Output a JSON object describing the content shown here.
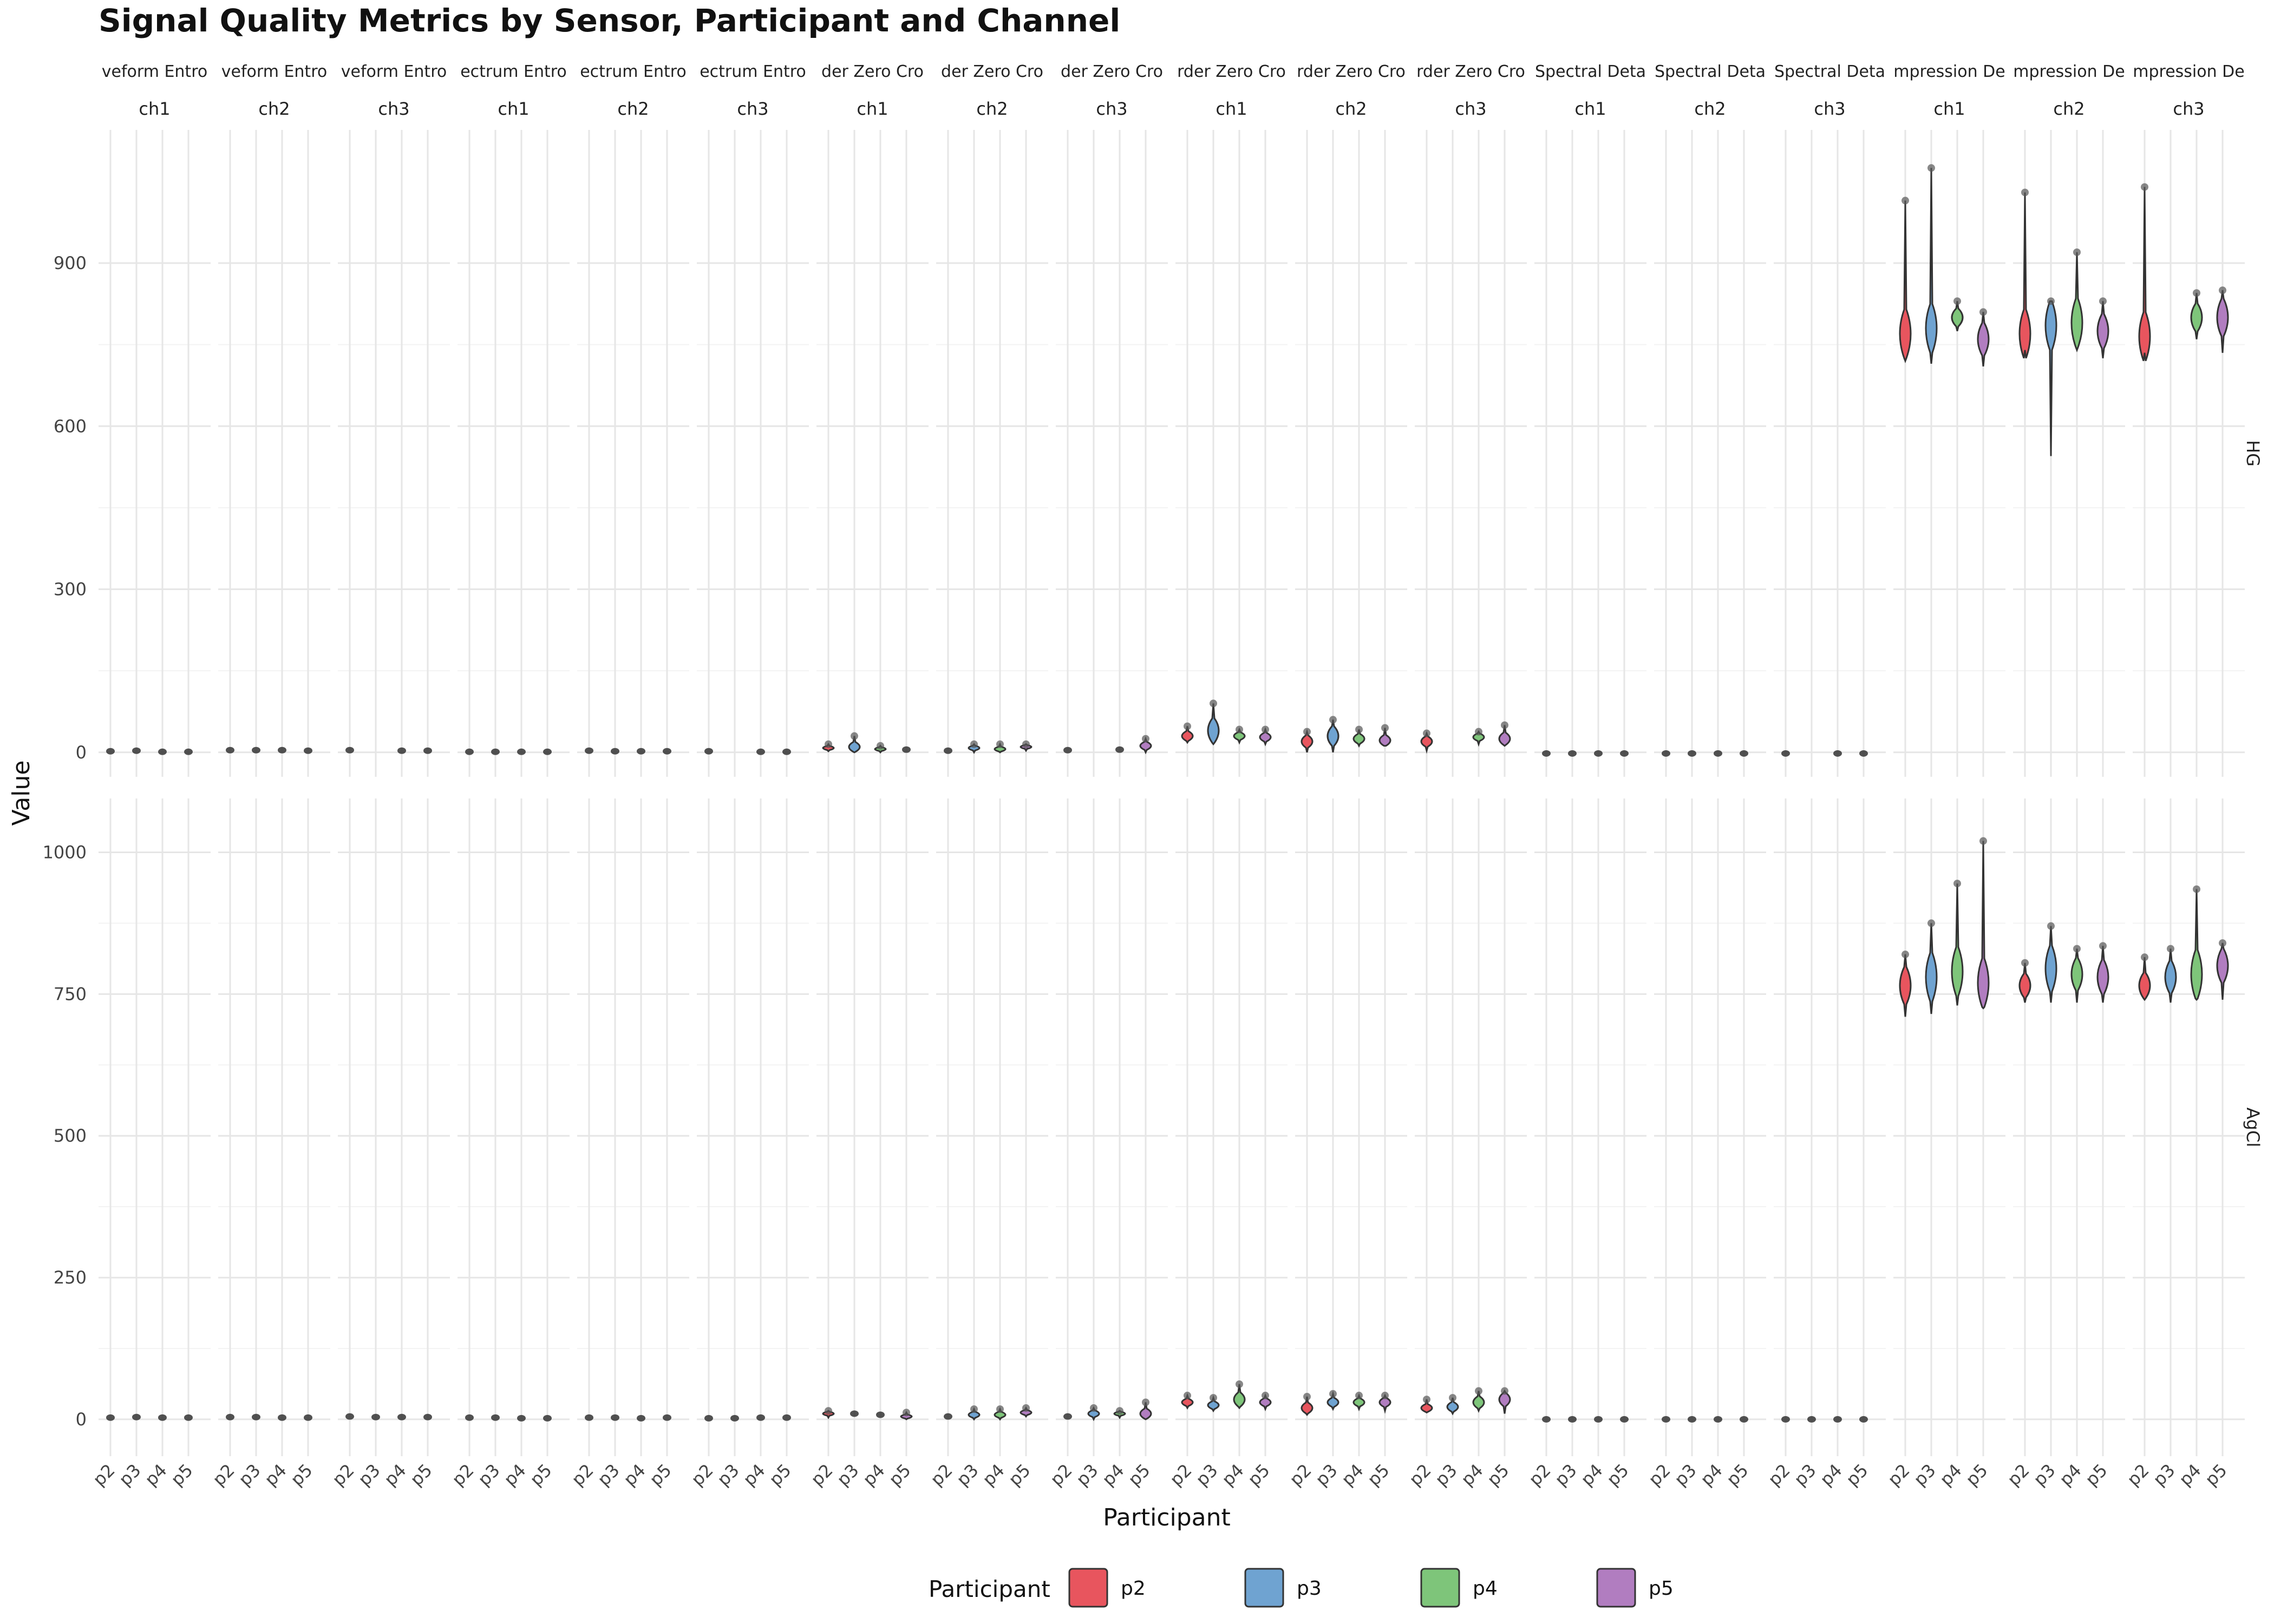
{
  "chart_data": {
    "type": "violin",
    "title": "Signal Quality Metrics by Sensor, Participant and Channel",
    "xlabel": "Participant",
    "ylabel": "Value",
    "categories": [
      "p2",
      "p3",
      "p4",
      "p5"
    ],
    "metric_strips": [
      "veform Entro",
      "veform Entro",
      "veform Entro",
      "ectrum Entro",
      "ectrum Entro",
      "ectrum Entro",
      "der Zero Cro",
      "der Zero Cro",
      "der Zero Cro",
      "rder Zero Cro",
      "rder Zero Cro",
      "rder Zero Cro",
      "Spectral Deta",
      "Spectral Deta",
      "Spectral Deta",
      "mpression De",
      "mpression De",
      "mpression De"
    ],
    "channel_strips": [
      "ch1",
      "ch2",
      "ch3",
      "ch1",
      "ch2",
      "ch3",
      "ch1",
      "ch2",
      "ch3",
      "ch1",
      "ch2",
      "ch3",
      "ch1",
      "ch2",
      "ch3",
      "ch1",
      "ch2",
      "ch3"
    ],
    "rows": [
      {
        "sensor": "HG",
        "ylim": [
          -45,
          1145
        ],
        "yticks": [
          0,
          300,
          600,
          900
        ],
        "panels": [
          [
            [
              2,
              1,
              6
            ],
            [
              3,
              1,
              6
            ],
            [
              1,
              0,
              3
            ],
            [
              1,
              0,
              3
            ]
          ],
          [
            [
              4,
              1,
              8
            ],
            [
              4,
              1,
              8
            ],
            [
              4,
              1,
              8
            ],
            [
              3,
              1,
              6
            ]
          ],
          [
            [
              4,
              1,
              8
            ],
            null,
            [
              3,
              1,
              5
            ],
            [
              3,
              1,
              5
            ]
          ],
          [
            [
              1,
              0,
              2
            ],
            [
              1,
              0,
              3
            ],
            [
              1,
              0,
              2
            ],
            [
              1,
              0,
              2
            ]
          ],
          [
            [
              3,
              0,
              5
            ],
            [
              2,
              0,
              4
            ],
            [
              2,
              0,
              4
            ],
            [
              2,
              0,
              4
            ]
          ],
          [
            [
              2,
              0,
              4
            ],
            null,
            [
              1,
              0,
              2
            ],
            [
              1,
              0,
              3
            ]
          ],
          [
            [
              8,
              2,
              15
            ],
            [
              10,
              0,
              30
            ],
            [
              6,
              0,
              12
            ],
            [
              5,
              1,
              10
            ]
          ],
          [
            [
              3,
              0,
              8
            ],
            [
              8,
              0,
              15
            ],
            [
              6,
              0,
              15
            ],
            [
              10,
              3,
              15
            ]
          ],
          [
            [
              4,
              0,
              10
            ],
            null,
            [
              5,
              0,
              10
            ],
            [
              12,
              0,
              25
            ]
          ],
          [
            [
              30,
              18,
              48
            ],
            [
              40,
              15,
              90
            ],
            [
              30,
              18,
              42
            ],
            [
              28,
              15,
              42
            ]
          ],
          [
            [
              20,
              0,
              38
            ],
            [
              30,
              0,
              60
            ],
            [
              25,
              12,
              42
            ],
            [
              22,
              12,
              45
            ]
          ],
          [
            [
              20,
              3,
              35
            ],
            null,
            [
              28,
              15,
              38
            ],
            [
              25,
              12,
              50
            ]
          ],
          [
            [
              -2,
              -3,
              1
            ],
            [
              -2,
              -3,
              0
            ],
            [
              -2,
              -3,
              -1
            ],
            [
              -2,
              -3,
              0
            ]
          ],
          [
            [
              -2,
              -3,
              0
            ],
            [
              -2,
              -3,
              0
            ],
            [
              -2,
              -3,
              0
            ],
            [
              -2,
              -3,
              0
            ]
          ],
          [
            [
              -2,
              -3,
              0
            ],
            null,
            [
              -2,
              -3,
              0
            ],
            [
              -2,
              -3,
              0
            ]
          ],
          [
            [
              770,
              720,
              1015
            ],
            [
              780,
              715,
              1075
            ],
            [
              800,
              775,
              830
            ],
            [
              760,
              710,
              810
            ]
          ],
          [
            [
              770,
              740,
              1030
            ],
            [
              785,
              545,
              830
            ],
            [
              790,
              740,
              920
            ],
            [
              775,
              725,
              830
            ]
          ],
          [
            [
              765,
              735,
              1040
            ],
            null,
            [
              800,
              760,
              845
            ],
            [
              800,
              735,
              850
            ]
          ]
        ]
      },
      {
        "sensor": "AgCl",
        "ylim": [
          -65,
          1095
        ],
        "yticks": [
          0,
          250,
          500,
          750,
          1000
        ],
        "panels": [
          [
            [
              3,
              0,
              5
            ],
            [
              4,
              1,
              8
            ],
            [
              3,
              0,
              6
            ],
            [
              3,
              0,
              6
            ]
          ],
          [
            [
              4,
              1,
              8
            ],
            [
              4,
              1,
              8
            ],
            [
              3,
              0,
              6
            ],
            [
              3,
              0,
              6
            ]
          ],
          [
            [
              5,
              1,
              8
            ],
            [
              4,
              1,
              7
            ],
            [
              4,
              1,
              7
            ],
            [
              4,
              1,
              7
            ]
          ],
          [
            [
              3,
              0,
              6
            ],
            [
              3,
              0,
              5
            ],
            [
              2,
              0,
              5
            ],
            [
              2,
              0,
              5
            ]
          ],
          [
            [
              3,
              0,
              7
            ],
            [
              3,
              0,
              7
            ],
            [
              2,
              0,
              5
            ],
            [
              3,
              0,
              6
            ]
          ],
          [
            [
              2,
              0,
              5
            ],
            [
              2,
              0,
              4
            ],
            [
              3,
              0,
              6
            ],
            [
              3,
              0,
              6
            ]
          ],
          [
            [
              10,
              3,
              15
            ],
            [
              10,
              5,
              14
            ],
            [
              8,
              3,
              13
            ],
            [
              5,
              0,
              12
            ]
          ],
          [
            [
              5,
              0,
              10
            ],
            [
              8,
              0,
              18
            ],
            [
              8,
              0,
              18
            ],
            [
              12,
              5,
              20
            ]
          ],
          [
            [
              5,
              0,
              10
            ],
            [
              10,
              0,
              20
            ],
            [
              10,
              3,
              15
            ],
            [
              10,
              0,
              30
            ]
          ],
          [
            [
              30,
              20,
              42
            ],
            [
              25,
              15,
              38
            ],
            [
              35,
              20,
              62
            ],
            [
              30,
              18,
              42
            ]
          ],
          [
            [
              20,
              8,
              40
            ],
            [
              30,
              18,
              45
            ],
            [
              30,
              18,
              42
            ],
            [
              30,
              15,
              42
            ]
          ],
          [
            [
              20,
              12,
              35
            ],
            [
              22,
              10,
              38
            ],
            [
              30,
              15,
              50
            ],
            [
              35,
              10,
              50
            ]
          ],
          [
            [
              0,
              -2,
              2
            ],
            [
              0,
              -2,
              2
            ],
            [
              0,
              -2,
              2
            ],
            [
              0,
              -2,
              2
            ]
          ],
          [
            [
              0,
              -2,
              1
            ],
            [
              0,
              -2,
              4
            ],
            [
              0,
              -2,
              2
            ],
            [
              0,
              -2,
              2
            ]
          ],
          [
            [
              0,
              -2,
              2
            ],
            [
              0,
              -2,
              2
            ],
            [
              0,
              -2,
              2
            ],
            [
              0,
              -2,
              2
            ]
          ],
          [
            [
              765,
              710,
              820
            ],
            [
              780,
              715,
              875
            ],
            [
              790,
              730,
              945
            ],
            [
              770,
              725,
              1020
            ]
          ],
          [
            [
              765,
              735,
              805
            ],
            [
              795,
              735,
              870
            ],
            [
              785,
              735,
              830
            ],
            [
              780,
              735,
              835
            ]
          ],
          [
            [
              765,
              740,
              815
            ],
            [
              780,
              735,
              830
            ],
            [
              785,
              740,
              935
            ],
            [
              800,
              740,
              840
            ]
          ]
        ]
      }
    ],
    "legend": {
      "title": "Participant",
      "position": "bottom",
      "entries": [
        {
          "label": "p2",
          "color": "#E8555E"
        },
        {
          "label": "p3",
          "color": "#6FA3D1"
        },
        {
          "label": "p4",
          "color": "#7EC57A"
        },
        {
          "label": "p5",
          "color": "#B17DC0"
        }
      ]
    },
    "grid": true
  }
}
